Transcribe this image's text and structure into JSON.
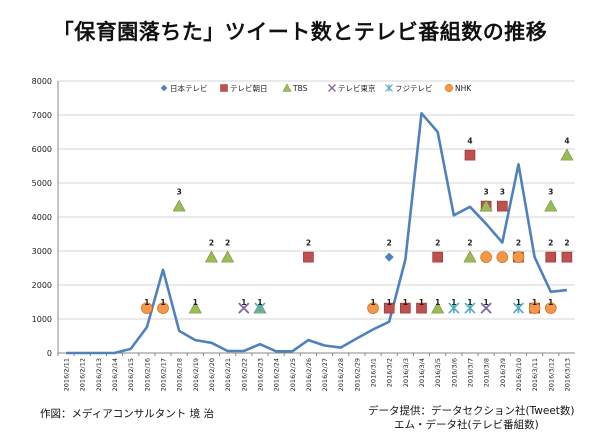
{
  "title": "「保育園落ちた」ツイート数とテレビ番組数の推移",
  "credit_left": "作図：メディアコンサルタント 境 治",
  "credit_right_1": "データ提供：データセクション社(Tweet数)",
  "credit_right_2": "エム・データ社(テレビ番組数)",
  "chart_data": {
    "type": "line",
    "title": "「保育園落ちた」ツイート数とテレビ番組数の推移",
    "xlabel": "",
    "ylabel": "",
    "ylim": [
      0,
      8000
    ],
    "yticks": [
      0,
      1000,
      2000,
      3000,
      4000,
      5000,
      6000,
      7000,
      8000
    ],
    "grid": "horizontal",
    "legend_position": "top",
    "categories": [
      "2016/2/11",
      "2016/2/12",
      "2016/2/13",
      "2016/2/14",
      "2016/2/15",
      "2016/2/16",
      "2016/2/17",
      "2016/2/18",
      "2016/2/19",
      "2016/2/20",
      "2016/2/21",
      "2016/2/22",
      "2016/2/23",
      "2016/2/24",
      "2016/2/25",
      "2016/2/26",
      "2016/2/27",
      "2016/2/28",
      "2016/2/29",
      "2016/3/1",
      "2016/3/2",
      "2016/3/3",
      "2016/3/4",
      "2016/3/5",
      "2016/3/6",
      "2016/3/7",
      "2016/3/8",
      "2016/3/9",
      "2016/3/10",
      "2016/3/11",
      "2016/3/12",
      "2016/3/13"
    ],
    "line": {
      "color": "#4F81BD",
      "values": [
        0,
        0,
        0,
        0,
        120,
        760,
        2450,
        650,
        380,
        300,
        60,
        60,
        260,
        50,
        50,
        380,
        220,
        160,
        430,
        690,
        920,
        2750,
        7050,
        6500,
        4050,
        4300,
        3800,
        3250,
        5550,
        2820,
        1800,
        1850
      ]
    },
    "series": [
      {
        "name": "日本テレビ",
        "marker": "diamond",
        "color": "#4F81BD",
        "points": [
          {
            "x": "2016/3/2",
            "tweets": 2820,
            "programs": 2
          }
        ]
      },
      {
        "name": "テレビ朝日",
        "marker": "square",
        "color": "#C0504D",
        "points": [
          {
            "x": "2016/2/26",
            "tweets": 2820,
            "programs": 2
          },
          {
            "x": "2016/3/2",
            "tweets": 1320,
            "programs": 1
          },
          {
            "x": "2016/3/3",
            "tweets": 1320,
            "programs": 1
          },
          {
            "x": "2016/3/4",
            "tweets": 1320,
            "programs": 1
          },
          {
            "x": "2016/3/5",
            "tweets": 2820,
            "programs": 2
          },
          {
            "x": "2016/3/7",
            "tweets": 5820,
            "programs": 4
          },
          {
            "x": "2016/3/8",
            "tweets": 4320,
            "programs": 3
          },
          {
            "x": "2016/3/9",
            "tweets": 4320,
            "programs": 3
          },
          {
            "x": "2016/3/10",
            "tweets": 2820,
            "programs": 2
          },
          {
            "x": "2016/3/11",
            "tweets": 1320,
            "programs": 1
          },
          {
            "x": "2016/3/12",
            "tweets": 2820,
            "programs": 2
          },
          {
            "x": "2016/3/13",
            "tweets": 2820,
            "programs": 2
          }
        ]
      },
      {
        "name": "TBS",
        "marker": "triangle",
        "color": "#9BBB59",
        "points": [
          {
            "x": "2016/2/18",
            "tweets": 4320,
            "programs": 3
          },
          {
            "x": "2016/2/19",
            "tweets": 1320,
            "programs": 1
          },
          {
            "x": "2016/2/20",
            "tweets": 2820,
            "programs": 2
          },
          {
            "x": "2016/2/21",
            "tweets": 2820,
            "programs": 2
          },
          {
            "x": "2016/2/23",
            "tweets": 1320,
            "programs": 1
          },
          {
            "x": "2016/3/5",
            "tweets": 1320,
            "programs": 1
          },
          {
            "x": "2016/3/7",
            "tweets": 2820,
            "programs": 2
          },
          {
            "x": "2016/3/8",
            "tweets": 4320,
            "programs": 3
          },
          {
            "x": "2016/3/12",
            "tweets": 4320,
            "programs": 3
          },
          {
            "x": "2016/3/13",
            "tweets": 5820,
            "programs": 4
          }
        ]
      },
      {
        "name": "テレビ東京",
        "marker": "x",
        "color": "#8064A2",
        "points": [
          {
            "x": "2016/2/22",
            "tweets": 1320,
            "programs": 1
          },
          {
            "x": "2016/3/8",
            "tweets": 1320,
            "programs": 1
          }
        ]
      },
      {
        "name": "フジテレビ",
        "marker": "star",
        "color": "#4BACC6",
        "points": [
          {
            "x": "2016/2/23",
            "tweets": 1320,
            "programs": 1
          },
          {
            "x": "2016/3/6",
            "tweets": 1320,
            "programs": 1
          },
          {
            "x": "2016/3/7",
            "tweets": 1320,
            "programs": 1
          },
          {
            "x": "2016/3/10",
            "tweets": 1320,
            "programs": 1
          }
        ]
      },
      {
        "name": "NHK",
        "marker": "circle",
        "color": "#F79646",
        "points": [
          {
            "x": "2016/2/16",
            "tweets": 1320,
            "programs": 1
          },
          {
            "x": "2016/2/17",
            "tweets": 1320,
            "programs": 1
          },
          {
            "x": "2016/3/1",
            "tweets": 1320,
            "programs": 1
          },
          {
            "x": "2016/3/8",
            "tweets": 2820,
            "programs": 2
          },
          {
            "x": "2016/3/9",
            "tweets": 2820,
            "programs": 2
          },
          {
            "x": "2016/3/10",
            "tweets": 2820,
            "programs": 2
          },
          {
            "x": "2016/3/11",
            "tweets": 1320,
            "programs": 1
          },
          {
            "x": "2016/3/12",
            "tweets": 1320,
            "programs": 1
          }
        ]
      }
    ],
    "data_labels": [
      {
        "x": "2016/2/16",
        "text": "1",
        "y": 1500
      },
      {
        "x": "2016/2/17",
        "text": "1",
        "y": 1500
      },
      {
        "x": "2016/2/18",
        "text": "3",
        "y": 4750
      },
      {
        "x": "2016/2/19",
        "text": "1",
        "y": 1500
      },
      {
        "x": "2016/2/20",
        "text": "2",
        "y": 3250
      },
      {
        "x": "2016/2/21",
        "text": "2",
        "y": 3250
      },
      {
        "x": "2016/2/22",
        "text": "1",
        "y": 1500
      },
      {
        "x": "2016/2/23",
        "text": "1",
        "y": 1500
      },
      {
        "x": "2016/2/26",
        "text": "2",
        "y": 3250
      },
      {
        "x": "2016/3/1",
        "text": "1",
        "y": 1500
      },
      {
        "x": "2016/3/2",
        "text": "2",
        "y": 3250
      },
      {
        "x": "2016/3/2",
        "text": "1",
        "y": 1500
      },
      {
        "x": "2016/3/3",
        "text": "1",
        "y": 1500
      },
      {
        "x": "2016/3/4",
        "text": "1",
        "y": 1500
      },
      {
        "x": "2016/3/5",
        "text": "2",
        "y": 3250
      },
      {
        "x": "2016/3/5",
        "text": "1",
        "y": 1500
      },
      {
        "x": "2016/3/6",
        "text": "1",
        "y": 1500
      },
      {
        "x": "2016/3/7",
        "text": "4",
        "y": 6250
      },
      {
        "x": "2016/3/7",
        "text": "2",
        "y": 3250
      },
      {
        "x": "2016/3/7",
        "text": "1",
        "y": 1500
      },
      {
        "x": "2016/3/8",
        "text": "3",
        "y": 4750
      },
      {
        "x": "2016/3/8",
        "text": "1",
        "y": 1500
      },
      {
        "x": "2016/3/9",
        "text": "3",
        "y": 4750
      },
      {
        "x": "2016/3/10",
        "text": "2",
        "y": 3250
      },
      {
        "x": "2016/3/10",
        "text": "1",
        "y": 1500
      },
      {
        "x": "2016/3/11",
        "text": "1",
        "y": 1500
      },
      {
        "x": "2016/3/12",
        "text": "3",
        "y": 4750
      },
      {
        "x": "2016/3/12",
        "text": "2",
        "y": 3250
      },
      {
        "x": "2016/3/12",
        "text": "1",
        "y": 1500
      },
      {
        "x": "2016/3/13",
        "text": "4",
        "y": 6250
      },
      {
        "x": "2016/3/13",
        "text": "2",
        "y": 3250
      }
    ]
  }
}
